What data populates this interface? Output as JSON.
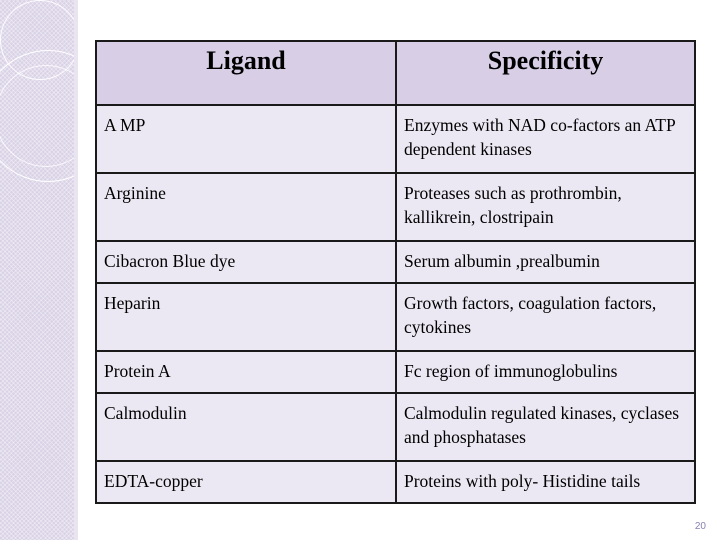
{
  "slide": {
    "page_number": "20"
  },
  "table": {
    "headers": [
      "Ligand",
      "Specificity"
    ],
    "rows": [
      {
        "ligand": "A MP",
        "specificity": "Enzymes with NAD co-factors an ATP dependent kinases"
      },
      {
        "ligand": "Arginine",
        "specificity": "Proteases such as prothrombin, kallikrein, clostripain"
      },
      {
        "ligand": "Cibacron Blue dye",
        "specificity": "Serum albumin ,prealbumin"
      },
      {
        "ligand": "Heparin",
        "specificity": "Growth factors, coagulation factors, cytokines"
      },
      {
        "ligand": "Protein A",
        "specificity": "Fc region of immunoglobulins"
      },
      {
        "ligand": "Calmodulin",
        "specificity": "Calmodulin regulated kinases, cyclases and phosphatases"
      },
      {
        "ligand": "EDTA-copper",
        "specificity": "Proteins with poly- Histidine tails"
      }
    ]
  },
  "colors": {
    "header_fill": "#d8cfe6",
    "cell_fill": "#ece8f3",
    "side_band": "#d9d1e6",
    "page_number": "#8a7fb0"
  }
}
